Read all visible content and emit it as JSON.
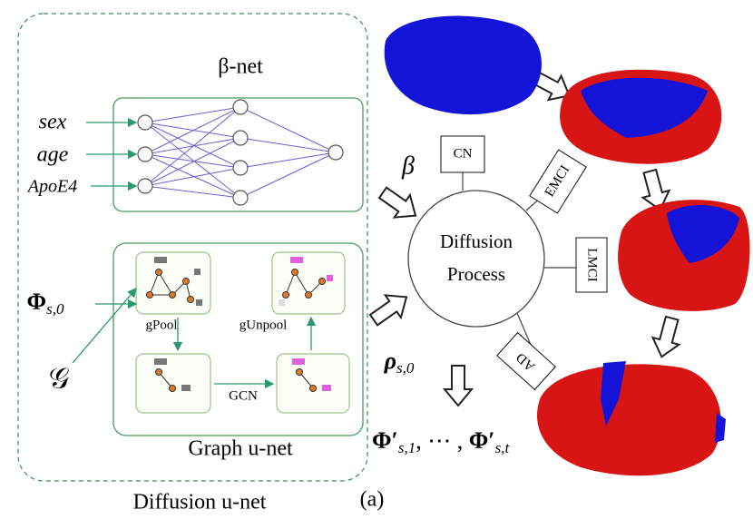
{
  "beta_net": {
    "title": "β-net",
    "inputs": [
      "sex",
      "age",
      "ApoE4"
    ]
  },
  "graph_unet": {
    "title": "Graph u-net",
    "pool": "gPool",
    "unpool": "gUnpool",
    "conv": "GCN",
    "input_signal": {
      "symbol": "Φ",
      "subscript": "s,0"
    },
    "graph": "𝒢"
  },
  "diffusion_unet": {
    "title": "Diffusion u-net"
  },
  "panel_label": "(a)",
  "diffusion": {
    "title_lines": [
      "Diffusion",
      "Process"
    ],
    "beta": "β",
    "rho": {
      "symbol": "ρ",
      "subscript": "s,0"
    },
    "stages": [
      "CN",
      "EMCI",
      "LMCI",
      "AD"
    ]
  },
  "output": {
    "first": {
      "symbol": "Φ′",
      "subscript": "s,1"
    },
    "separator": ", ⋯ , ",
    "last": {
      "symbol": "Φ′",
      "subscript": "s,t"
    }
  }
}
